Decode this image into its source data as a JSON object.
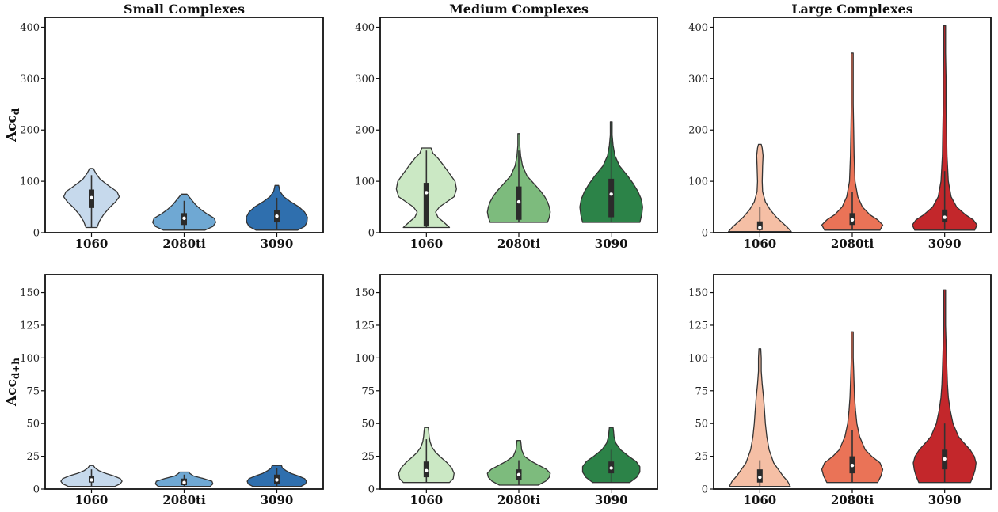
{
  "chart_data": [
    {
      "type": "violin",
      "title": "Small Complexes",
      "ylabel": "Acc",
      "ylabel_sub": "d",
      "ylim": [
        0,
        410
      ],
      "yticks": [
        0,
        100,
        200,
        300,
        400
      ],
      "categories": [
        "1060",
        "2080ti",
        "3090"
      ],
      "palette": [
        "#c6d9ec",
        "#6fa8d3",
        "#2f6fae"
      ],
      "violins": [
        {
          "y": [
            10,
            22,
            35,
            48,
            60,
            70,
            80,
            88,
            96,
            105,
            115,
            125
          ],
          "w": [
            0.12,
            0.17,
            0.26,
            0.38,
            0.52,
            0.6,
            0.55,
            0.42,
            0.3,
            0.18,
            0.1,
            0.04
          ],
          "median": 68,
          "q1": 48,
          "q3": 84,
          "wlo": 10,
          "whi": 112
        },
        {
          "y": [
            5,
            12,
            20,
            28,
            36,
            45,
            55,
            65,
            75
          ],
          "w": [
            0.45,
            0.62,
            0.68,
            0.65,
            0.5,
            0.36,
            0.24,
            0.15,
            0.06
          ],
          "median": 28,
          "q1": 15,
          "q3": 38,
          "wlo": 5,
          "whi": 62
        },
        {
          "y": [
            5,
            12,
            20,
            30,
            40,
            50,
            60,
            70,
            80,
            92
          ],
          "w": [
            0.45,
            0.6,
            0.65,
            0.66,
            0.6,
            0.48,
            0.3,
            0.15,
            0.07,
            0.04
          ],
          "median": 32,
          "q1": 20,
          "q3": 44,
          "wlo": 5,
          "whi": 68
        }
      ]
    },
    {
      "type": "violin",
      "title": "Medium Complexes",
      "ylabel": "",
      "ylim": [
        0,
        410
      ],
      "yticks": [
        0,
        100,
        200,
        300,
        400
      ],
      "categories": [
        "1060",
        "2080ti",
        "3090"
      ],
      "palette": [
        "#cbe8c4",
        "#7dbb7d",
        "#2c8348"
      ],
      "violins": [
        {
          "y": [
            10,
            20,
            30,
            40,
            50,
            60,
            70,
            85,
            100,
            115,
            130,
            145,
            155,
            165
          ],
          "w": [
            0.5,
            0.38,
            0.25,
            0.2,
            0.28,
            0.44,
            0.6,
            0.65,
            0.62,
            0.5,
            0.38,
            0.25,
            0.14,
            0.1
          ],
          "median": 78,
          "q1": 12,
          "q3": 97,
          "wlo": 10,
          "whi": 160
        },
        {
          "y": [
            20,
            30,
            40,
            50,
            60,
            70,
            80,
            90,
            110,
            130,
            150,
            170,
            193
          ],
          "w": [
            0.62,
            0.66,
            0.68,
            0.66,
            0.62,
            0.56,
            0.48,
            0.38,
            0.18,
            0.08,
            0.04,
            0.02,
            0.02
          ],
          "median": 60,
          "q1": 25,
          "q3": 90,
          "wlo": 20,
          "whi": 160
        },
        {
          "y": [
            20,
            35,
            50,
            65,
            80,
            95,
            110,
            130,
            150,
            170,
            190,
            216
          ],
          "w": [
            0.62,
            0.66,
            0.68,
            0.65,
            0.58,
            0.48,
            0.36,
            0.18,
            0.08,
            0.04,
            0.02,
            0.02
          ],
          "median": 75,
          "q1": 30,
          "q3": 105,
          "wlo": 20,
          "whi": 180
        }
      ]
    },
    {
      "type": "violin",
      "title": "Large Complexes",
      "ylabel": "",
      "ylim": [
        0,
        410
      ],
      "yticks": [
        0,
        100,
        200,
        300,
        400
      ],
      "categories": [
        "1060",
        "2080ti",
        "3090"
      ],
      "palette": [
        "#f5bfa5",
        "#ea7357",
        "#c3272b"
      ],
      "violins": [
        {
          "y": [
            2,
            10,
            20,
            30,
            45,
            60,
            80,
            100,
            130,
            150,
            165,
            172
          ],
          "w": [
            0.68,
            0.6,
            0.48,
            0.36,
            0.22,
            0.12,
            0.06,
            0.05,
            0.06,
            0.07,
            0.05,
            0.03
          ],
          "median": 10,
          "q1": 5,
          "q3": 22,
          "wlo": 2,
          "whi": 50
        },
        {
          "y": [
            5,
            15,
            25,
            35,
            50,
            70,
            100,
            150,
            200,
            250,
            300,
            350
          ],
          "w": [
            0.6,
            0.66,
            0.55,
            0.38,
            0.22,
            0.12,
            0.06,
            0.04,
            0.03,
            0.02,
            0.02,
            0.02
          ],
          "median": 25,
          "q1": 15,
          "q3": 38,
          "wlo": 5,
          "whi": 80
        },
        {
          "y": [
            5,
            15,
            25,
            35,
            50,
            70,
            100,
            150,
            200,
            250,
            300,
            350,
            403
          ],
          "w": [
            0.65,
            0.7,
            0.62,
            0.45,
            0.26,
            0.14,
            0.08,
            0.05,
            0.04,
            0.03,
            0.03,
            0.02,
            0.02
          ],
          "median": 30,
          "q1": 20,
          "q3": 45,
          "wlo": 5,
          "whi": 120
        }
      ]
    },
    {
      "type": "violin",
      "title": "",
      "ylabel": "Acc",
      "ylabel_sub": "d+h",
      "ylim": [
        0,
        160
      ],
      "yticks": [
        0,
        25,
        50,
        75,
        100,
        125,
        150
      ],
      "categories": [
        "1060",
        "2080ti",
        "3090"
      ],
      "palette": [
        "#c6d9ec",
        "#6fa8d3",
        "#2f6fae"
      ],
      "violins": [
        {
          "y": [
            2,
            4,
            6,
            8,
            10,
            12,
            14,
            16,
            18
          ],
          "w": [
            0.5,
            0.62,
            0.66,
            0.62,
            0.48,
            0.3,
            0.16,
            0.08,
            0.04
          ],
          "median": 7,
          "q1": 5,
          "q3": 10,
          "wlo": 2,
          "whi": 15
        },
        {
          "y": [
            2,
            4,
            6,
            8,
            10,
            12,
            13
          ],
          "w": [
            0.56,
            0.62,
            0.6,
            0.42,
            0.2,
            0.12,
            0.1
          ],
          "median": 5,
          "q1": 3,
          "q3": 8,
          "wlo": 2,
          "whi": 11
        },
        {
          "y": [
            2,
            4,
            6,
            8,
            10,
            12,
            14,
            16,
            18
          ],
          "w": [
            0.52,
            0.62,
            0.64,
            0.6,
            0.46,
            0.3,
            0.2,
            0.12,
            0.1
          ],
          "median": 7,
          "q1": 4,
          "q3": 11,
          "wlo": 2,
          "whi": 16
        }
      ]
    },
    {
      "type": "violin",
      "title": "",
      "ylabel": "",
      "ylim": [
        0,
        160
      ],
      "yticks": [
        0,
        25,
        50,
        75,
        100,
        125,
        150
      ],
      "categories": [
        "1060",
        "2080ti",
        "3090"
      ],
      "palette": [
        "#cbe8c4",
        "#7dbb7d",
        "#2c8348"
      ],
      "violins": [
        {
          "y": [
            5,
            8,
            12,
            16,
            20,
            24,
            28,
            32,
            36,
            40,
            44,
            47
          ],
          "w": [
            0.5,
            0.58,
            0.6,
            0.55,
            0.45,
            0.32,
            0.2,
            0.12,
            0.08,
            0.06,
            0.05,
            0.04
          ],
          "median": 14,
          "q1": 9,
          "q3": 21,
          "wlo": 5,
          "whi": 38
        },
        {
          "y": [
            3,
            6,
            9,
            12,
            15,
            18,
            21,
            25,
            30,
            34,
            37
          ],
          "w": [
            0.42,
            0.58,
            0.66,
            0.68,
            0.6,
            0.44,
            0.28,
            0.12,
            0.06,
            0.05,
            0.04
          ],
          "median": 11,
          "q1": 7,
          "q3": 15,
          "wlo": 3,
          "whi": 22
        },
        {
          "y": [
            5,
            9,
            13,
            17,
            21,
            25,
            30,
            35,
            40,
            44,
            47
          ],
          "w": [
            0.4,
            0.55,
            0.62,
            0.62,
            0.54,
            0.38,
            0.2,
            0.1,
            0.06,
            0.05,
            0.04
          ],
          "median": 16,
          "q1": 12,
          "q3": 21,
          "wlo": 5,
          "whi": 30
        }
      ]
    },
    {
      "type": "violin",
      "title": "",
      "ylabel": "",
      "ylim": [
        0,
        160
      ],
      "yticks": [
        0,
        25,
        50,
        75,
        100,
        125,
        150
      ],
      "categories": [
        "1060",
        "2080ti",
        "3090"
      ],
      "palette": [
        "#f5bfa5",
        "#ea7357",
        "#c3272b"
      ],
      "violins": [
        {
          "y": [
            2,
            6,
            10,
            15,
            20,
            30,
            40,
            50,
            60,
            70,
            80,
            90,
            100,
            107
          ],
          "w": [
            0.66,
            0.6,
            0.5,
            0.4,
            0.3,
            0.2,
            0.15,
            0.12,
            0.1,
            0.08,
            0.05,
            0.03,
            0.03,
            0.02
          ],
          "median": 9,
          "q1": 5,
          "q3": 15,
          "wlo": 2,
          "whi": 22
        },
        {
          "y": [
            5,
            10,
            15,
            20,
            25,
            30,
            40,
            50,
            60,
            70,
            80,
            90,
            100,
            110,
            120
          ],
          "w": [
            0.55,
            0.62,
            0.66,
            0.6,
            0.42,
            0.28,
            0.16,
            0.1,
            0.07,
            0.05,
            0.04,
            0.03,
            0.02,
            0.02,
            0.02
          ],
          "median": 18,
          "q1": 12,
          "q3": 25,
          "wlo": 5,
          "whi": 45
        },
        {
          "y": [
            5,
            10,
            15,
            20,
            25,
            30,
            35,
            40,
            50,
            60,
            70,
            80,
            90,
            100,
            125,
            152
          ],
          "w": [
            0.56,
            0.62,
            0.66,
            0.68,
            0.64,
            0.55,
            0.42,
            0.3,
            0.18,
            0.12,
            0.08,
            0.06,
            0.05,
            0.04,
            0.02,
            0.02
          ],
          "median": 23,
          "q1": 15,
          "q3": 30,
          "wlo": 5,
          "whi": 50
        }
      ]
    }
  ]
}
